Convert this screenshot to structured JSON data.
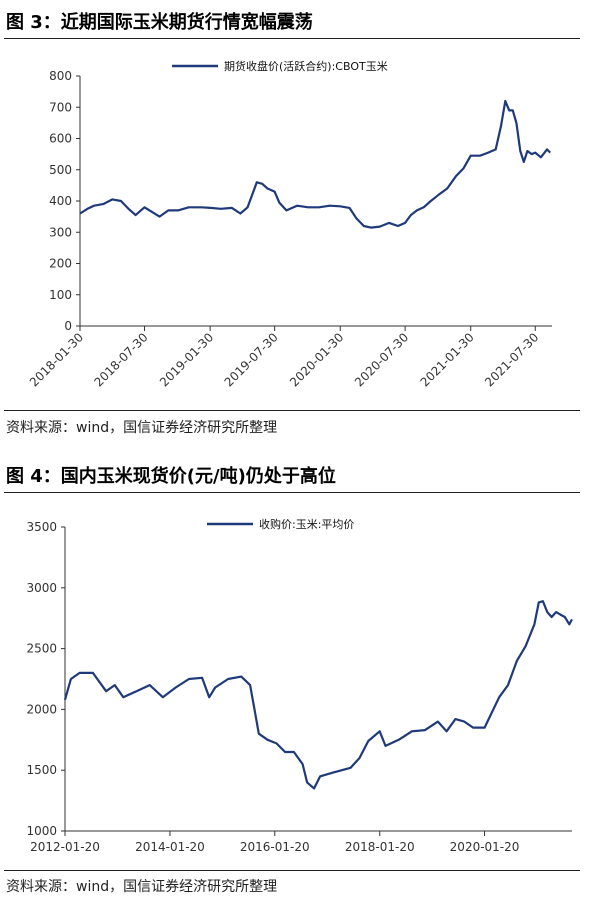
{
  "figures": [
    {
      "title": "图 3：近期国际玉米期货行情宽幅震荡",
      "source": "资料来源：wind，国信证券经济研究所整理"
    },
    {
      "title": "图 4：国内玉米现货价(元/吨)仍处于高位",
      "source": "资料来源：wind，国信证券经济研究所整理"
    }
  ],
  "colors": {
    "series": "#1f3a7a",
    "axis": "#333333",
    "rule": "#222222"
  },
  "chart_data": [
    {
      "type": "line",
      "title": "",
      "xlabel": "",
      "ylabel": "",
      "ylim": [
        0,
        800
      ],
      "yticks": [
        0,
        100,
        200,
        300,
        400,
        500,
        600,
        700,
        800
      ],
      "xticks": [
        "2018-01-30",
        "2018-07-30",
        "2019-01-30",
        "2019-07-30",
        "2020-01-30",
        "2020-07-30",
        "2021-01-30",
        "2021-07-30"
      ],
      "xrange": [
        "2018-01-30",
        "2021-09-15"
      ],
      "grid": false,
      "legend": "top-center",
      "series": [
        {
          "name": "期货收盘价(活跃合约):CBOT玉米",
          "x": [
            "2018-01-30",
            "2018-02-20",
            "2018-03-10",
            "2018-04-05",
            "2018-05-01",
            "2018-05-25",
            "2018-06-15",
            "2018-07-05",
            "2018-07-30",
            "2018-08-20",
            "2018-09-10",
            "2018-10-05",
            "2018-11-01",
            "2018-12-01",
            "2019-01-05",
            "2019-02-01",
            "2019-03-01",
            "2019-04-01",
            "2019-04-25",
            "2019-05-15",
            "2019-05-28",
            "2019-06-10",
            "2019-06-25",
            "2019-07-10",
            "2019-07-30",
            "2019-08-12",
            "2019-09-01",
            "2019-10-01",
            "2019-11-01",
            "2019-12-01",
            "2020-01-01",
            "2020-01-30",
            "2020-02-25",
            "2020-03-15",
            "2020-04-05",
            "2020-04-25",
            "2020-05-20",
            "2020-06-15",
            "2020-07-10",
            "2020-07-30",
            "2020-08-15",
            "2020-09-01",
            "2020-09-20",
            "2020-10-10",
            "2020-11-01",
            "2020-11-25",
            "2020-12-20",
            "2021-01-10",
            "2021-01-30",
            "2021-02-25",
            "2021-03-20",
            "2021-04-10",
            "2021-04-25",
            "2021-05-07",
            "2021-05-18",
            "2021-05-28",
            "2021-06-07",
            "2021-06-18",
            "2021-06-28",
            "2021-07-08",
            "2021-07-20",
            "2021-07-30",
            "2021-08-15",
            "2021-09-01",
            "2021-09-10"
          ],
          "values": [
            360,
            375,
            385,
            390,
            405,
            400,
            375,
            355,
            380,
            365,
            350,
            370,
            370,
            380,
            380,
            378,
            375,
            378,
            360,
            380,
            420,
            460,
            455,
            440,
            430,
            395,
            370,
            385,
            380,
            380,
            385,
            383,
            378,
            345,
            320,
            315,
            318,
            330,
            320,
            330,
            355,
            370,
            380,
            400,
            420,
            440,
            480,
            505,
            545,
            545,
            555,
            565,
            640,
            720,
            690,
            690,
            650,
            560,
            525,
            560,
            550,
            555,
            540,
            565,
            555
          ]
        }
      ]
    },
    {
      "type": "line",
      "title": "",
      "xlabel": "",
      "ylabel": "",
      "ylim": [
        1000,
        3500
      ],
      "yticks": [
        1000,
        1500,
        2000,
        2500,
        3000,
        3500
      ],
      "xticks": [
        "2012-01-20",
        "2014-01-20",
        "2016-01-20",
        "2018-01-20",
        "2020-01-20"
      ],
      "xrange": [
        "2012-01-20",
        "2021-09-20"
      ],
      "grid": false,
      "legend": "top-center",
      "series": [
        {
          "name": "收购价:玉米:平均价",
          "x": [
            "2012-01-20",
            "2012-03-01",
            "2012-05-01",
            "2012-08-01",
            "2012-11-01",
            "2013-01-01",
            "2013-03-01",
            "2013-06-01",
            "2013-09-01",
            "2013-12-01",
            "2014-03-01",
            "2014-06-01",
            "2014-09-01",
            "2014-10-20",
            "2014-12-01",
            "2015-03-01",
            "2015-06-01",
            "2015-08-01",
            "2015-09-01",
            "2015-10-01",
            "2015-12-01",
            "2016-02-01",
            "2016-04-01",
            "2016-06-01",
            "2016-08-01",
            "2016-09-01",
            "2016-10-20",
            "2016-12-01",
            "2017-03-01",
            "2017-05-01",
            "2017-07-01",
            "2017-09-01",
            "2017-11-01",
            "2018-01-20",
            "2018-03-01",
            "2018-06-01",
            "2018-09-01",
            "2018-12-01",
            "2019-03-01",
            "2019-05-01",
            "2019-07-01",
            "2019-09-01",
            "2019-11-01",
            "2020-01-20",
            "2020-03-01",
            "2020-05-01",
            "2020-07-01",
            "2020-09-01",
            "2020-11-01",
            "2021-01-01",
            "2021-02-01",
            "2021-03-01",
            "2021-04-01",
            "2021-05-01",
            "2021-06-01",
            "2021-07-01",
            "2021-08-01",
            "2021-09-01",
            "2021-09-20"
          ],
          "values": [
            2080,
            2250,
            2300,
            2300,
            2150,
            2200,
            2100,
            2150,
            2200,
            2100,
            2180,
            2250,
            2260,
            2100,
            2180,
            2250,
            2270,
            2200,
            2000,
            1800,
            1750,
            1720,
            1650,
            1650,
            1550,
            1400,
            1350,
            1450,
            1480,
            1500,
            1520,
            1600,
            1740,
            1820,
            1700,
            1750,
            1820,
            1830,
            1900,
            1820,
            1920,
            1900,
            1850,
            1850,
            1950,
            2100,
            2200,
            2400,
            2520,
            2700,
            2880,
            2890,
            2800,
            2760,
            2800,
            2780,
            2760,
            2700,
            2740
          ]
        }
      ]
    }
  ]
}
